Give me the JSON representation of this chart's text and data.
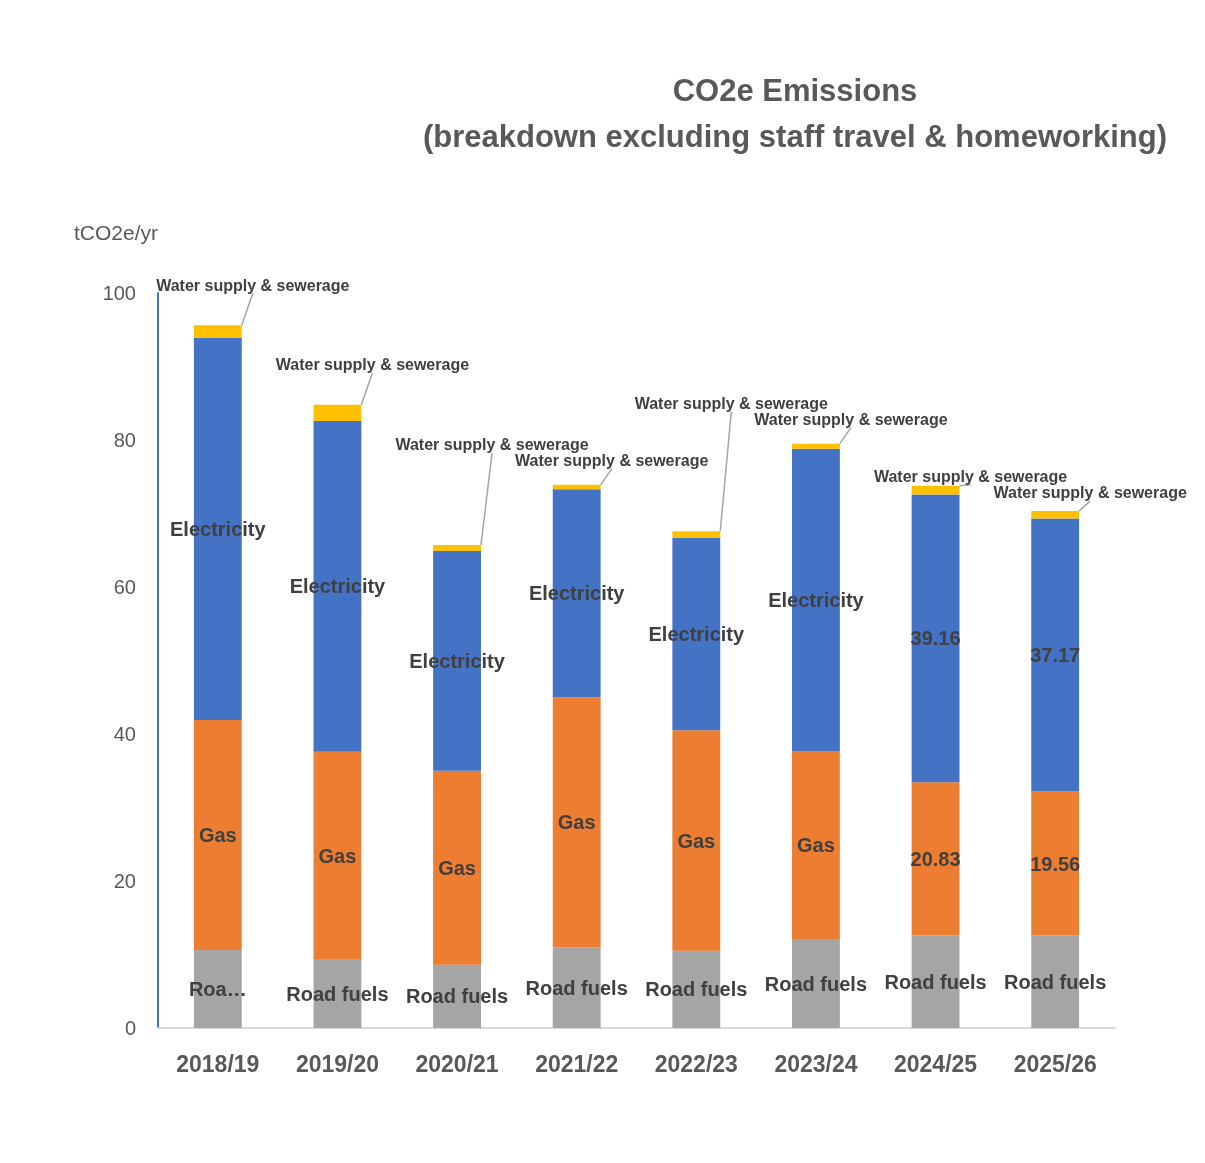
{
  "chart_data": {
    "type": "bar",
    "title": "CO2e Emissions\n(breakdown excluding staff travel & homeworking)",
    "ylabel": "tCO2e/yr",
    "categories": [
      "2018/19",
      "2019/20",
      "2020/21",
      "2021/22",
      "2022/23",
      "2023/24",
      "2024/25",
      "2025/26"
    ],
    "stacked": true,
    "ylim": [
      0,
      100
    ],
    "yticks": [
      0,
      20,
      40,
      60,
      80,
      100
    ],
    "series": [
      {
        "color": "#a5a5a5",
        "values": [
          10.6,
          9.3,
          8.6,
          11.0,
          10.5,
          12.1,
          12.6,
          12.6
        ],
        "value_labels": [
          "Roa…",
          "Road fuels",
          "Road fuels",
          "Road fuels",
          "Road fuels",
          "Road fuels",
          "Road fuels",
          "Road fuels"
        ]
      },
      {
        "color": "#ed7d31",
        "values": [
          31.3,
          28.3,
          26.4,
          34.0,
          30.0,
          25.6,
          20.83,
          19.56
        ],
        "value_labels": [
          "Gas",
          "Gas",
          "Gas",
          "Gas",
          "Gas",
          "Gas",
          "20.83",
          "19.56"
        ]
      },
      {
        "color": "#4472c4",
        "values": [
          52.0,
          45.0,
          29.9,
          28.3,
          26.2,
          41.1,
          39.16,
          37.17
        ],
        "value_labels": [
          "Electricity",
          "Electricity",
          "Electricity",
          "Electricity",
          "Electricity",
          "Electricity",
          "39.16",
          "37.17"
        ]
      },
      {
        "color": "#ffc000",
        "values": [
          1.7,
          2.2,
          0.8,
          0.6,
          0.9,
          0.7,
          1.2,
          1.0
        ],
        "value_labels": [
          "Water supply & sewerage",
          "Water supply & sewerage",
          "Water supply & sewerage",
          "Water supply & sewerage",
          "Water supply & sewerage",
          "Water supply & sewerage",
          "Water supply & sewerage",
          "Water supply & sewerage"
        ]
      }
    ]
  }
}
